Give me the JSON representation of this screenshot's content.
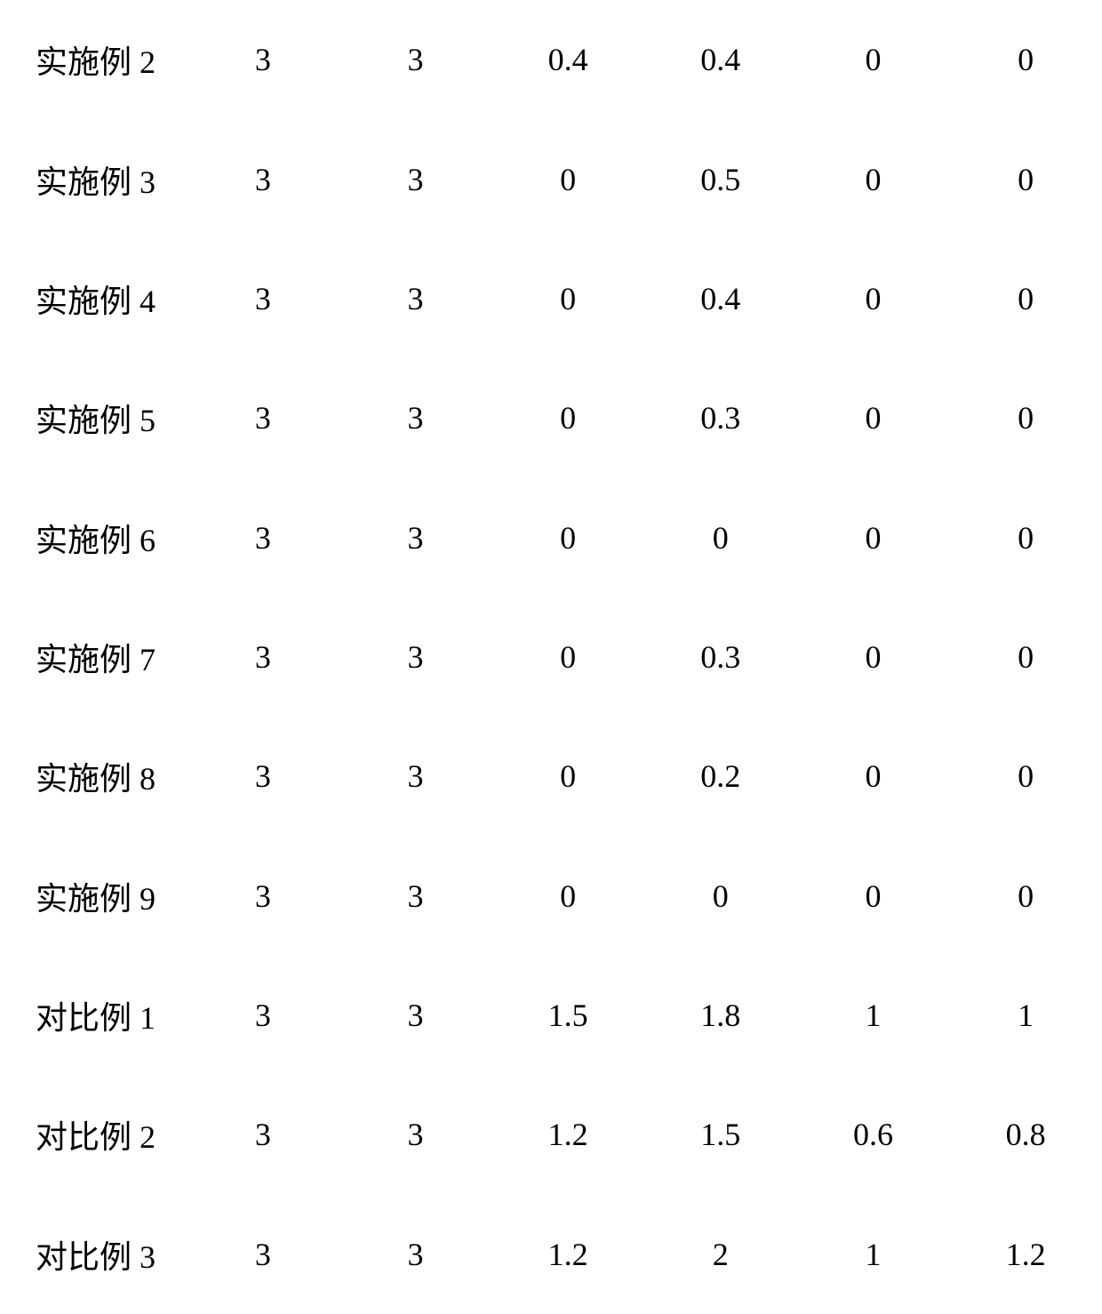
{
  "table": {
    "type": "table",
    "background_color": "#ffffff",
    "text_color": "#000000",
    "font_family_label": "SimSun / Songti serif",
    "font_family_data": "Times-like serif",
    "font_size_pt": 27,
    "columns": [
      "label",
      "c1",
      "c2",
      "c3",
      "c4",
      "c5",
      "c6"
    ],
    "rows": [
      {
        "label": "实施例 2",
        "c1": "3",
        "c2": "3",
        "c3": "0.4",
        "c4": "0.4",
        "c5": "0",
        "c6": "0"
      },
      {
        "label": "实施例 3",
        "c1": "3",
        "c2": "3",
        "c3": "0",
        "c4": "0.5",
        "c5": "0",
        "c6": "0"
      },
      {
        "label": "实施例 4",
        "c1": "3",
        "c2": "3",
        "c3": "0",
        "c4": "0.4",
        "c5": "0",
        "c6": "0"
      },
      {
        "label": "实施例 5",
        "c1": "3",
        "c2": "3",
        "c3": "0",
        "c4": "0.3",
        "c5": "0",
        "c6": "0"
      },
      {
        "label": "实施例 6",
        "c1": "3",
        "c2": "3",
        "c3": "0",
        "c4": "0",
        "c5": "0",
        "c6": "0"
      },
      {
        "label": "实施例 7",
        "c1": "3",
        "c2": "3",
        "c3": "0",
        "c4": "0.3",
        "c5": "0",
        "c6": "0"
      },
      {
        "label": "实施例 8",
        "c1": "3",
        "c2": "3",
        "c3": "0",
        "c4": "0.2",
        "c5": "0",
        "c6": "0"
      },
      {
        "label": "实施例 9",
        "c1": "3",
        "c2": "3",
        "c3": "0",
        "c4": "0",
        "c5": "0",
        "c6": "0"
      },
      {
        "label": "对比例 1",
        "c1": "3",
        "c2": "3",
        "c3": "1.5",
        "c4": "1.8",
        "c5": "1",
        "c6": "1"
      },
      {
        "label": "对比例 2",
        "c1": "3",
        "c2": "3",
        "c3": "1.2",
        "c4": "1.5",
        "c5": "0.6",
        "c6": "0.8"
      },
      {
        "label": "对比例 3",
        "c1": "3",
        "c2": "3",
        "c3": "1.2",
        "c4": "2",
        "c5": "1",
        "c6": "1.2"
      }
    ]
  }
}
